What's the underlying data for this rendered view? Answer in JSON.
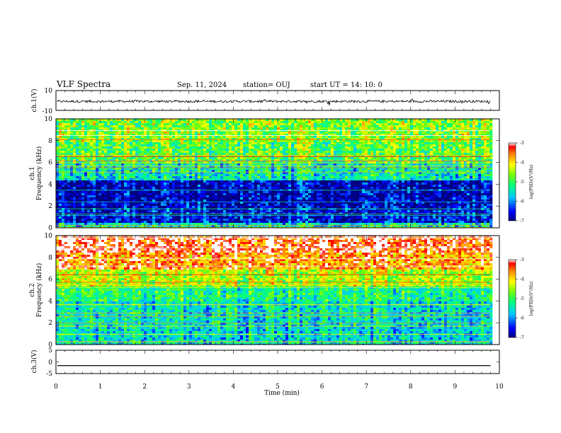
{
  "header": {
    "title": "VLF Spectra",
    "date": "Sep. 11, 2024",
    "station": "station= OUJ",
    "start": "start  UT =   14: 10: 0"
  },
  "chart_data": [
    {
      "type": "line",
      "ylabel": "ch.1(V)",
      "ylim": [
        -10,
        10
      ],
      "yticks": [
        "10",
        "-10"
      ],
      "x": [
        0,
        9.8
      ],
      "series": [
        {
          "values": [
            -0.9,
            -0.9
          ],
          "envelope": 1.2
        }
      ]
    },
    {
      "type": "heatmap",
      "ylabel": "ch.1\nFrequency  (kHz)",
      "ylim": [
        0,
        10
      ],
      "yticks": [
        "0",
        "2",
        "4",
        "6",
        "8",
        "10"
      ],
      "colorbar": {
        "label": "log(PSD)(V²/Hz)",
        "range": [
          -7,
          -3
        ],
        "ticks": [
          "-3",
          "-4",
          "-5",
          "-6",
          "-7"
        ]
      },
      "bands": [
        {
          "from": 0,
          "to": 0.5,
          "level": -5.5
        },
        {
          "from": 0.5,
          "to": 2,
          "level": -6.6
        },
        {
          "from": 2,
          "to": 4.5,
          "level": -6.8
        },
        {
          "from": 4.5,
          "to": 6,
          "level": -5.4
        },
        {
          "from": 6,
          "to": 8,
          "level": -4.8
        },
        {
          "from": 8,
          "to": 10,
          "level": -4.6
        }
      ]
    },
    {
      "type": "heatmap",
      "ylabel": "ch.2\nFrequency  (kHz)",
      "ylim": [
        0,
        10
      ],
      "yticks": [
        "0",
        "2",
        "4",
        "6",
        "8",
        "10"
      ],
      "colorbar": {
        "label": "log(PSD)(V²/Hz)",
        "range": [
          -7,
          -3
        ],
        "ticks": [
          "-3",
          "-4",
          "-5",
          "-6",
          "-7"
        ]
      },
      "bands": [
        {
          "from": 0,
          "to": 2,
          "level": -5.6
        },
        {
          "from": 2,
          "to": 4,
          "level": -5.5
        },
        {
          "from": 4,
          "to": 5.5,
          "level": -5.2
        },
        {
          "from": 5.5,
          "to": 7,
          "level": -4.4
        },
        {
          "from": 7,
          "to": 8.5,
          "level": -3.6
        },
        {
          "from": 8.5,
          "to": 10,
          "level": -3.2
        }
      ]
    },
    {
      "type": "line",
      "ylabel": "ch.3(V)",
      "ylim": [
        -5,
        5
      ],
      "yticks": [
        "5",
        "0",
        "-5"
      ],
      "x": [
        0,
        9.8
      ],
      "series": [
        {
          "values": [
            -1.6,
            -1.6
          ]
        }
      ]
    }
  ],
  "xaxis": {
    "label": "Time  (min)",
    "range": [
      0,
      10
    ],
    "ticks": [
      "0",
      "1",
      "2",
      "3",
      "4",
      "5",
      "6",
      "7",
      "8",
      "9",
      "10"
    ]
  }
}
